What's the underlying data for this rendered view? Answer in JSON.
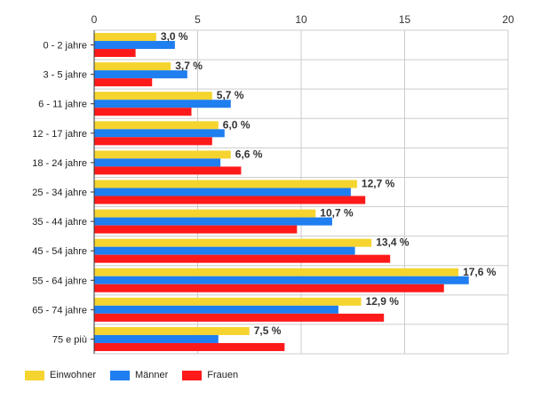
{
  "chart_data": {
    "type": "bar",
    "orientation": "horizontal",
    "categories": [
      "0 - 2 jahre",
      "3 - 5 jahre",
      "6 - 11 jahre",
      "12 - 17 jahre",
      "18 - 24 jahre",
      "25 - 34 jahre",
      "35 - 44 jahre",
      "45 - 54 jahre",
      "55 - 64 jahre",
      "65 - 74 jahre",
      "75 e più"
    ],
    "series": [
      {
        "name": "Einwohner",
        "color": "#f5d430",
        "values": [
          3.0,
          3.7,
          5.7,
          6.0,
          6.6,
          12.7,
          10.7,
          13.4,
          17.6,
          12.9,
          7.5
        ]
      },
      {
        "name": "Männer",
        "color": "#1f7ef0",
        "values": [
          3.9,
          4.5,
          6.6,
          6.3,
          6.1,
          12.4,
          11.5,
          12.6,
          18.1,
          11.8,
          6.0
        ]
      },
      {
        "name": "Frauen",
        "color": "#ff1a1a",
        "values": [
          2.0,
          2.8,
          4.7,
          5.7,
          7.1,
          13.1,
          9.8,
          14.3,
          16.9,
          14.0,
          9.2
        ]
      }
    ],
    "data_labels": [
      "3,0 %",
      "3,7 %",
      "5,7 %",
      "6,0 %",
      "6,6 %",
      "12,7 %",
      "10,7 %",
      "13,4 %",
      "17,6 %",
      "12,9 %",
      "7,5 %"
    ],
    "xlim": [
      0,
      20
    ],
    "xticks": [
      0,
      5,
      10,
      15,
      20
    ],
    "xtick_labels": [
      "0",
      "5",
      "10",
      "15",
      "20"
    ],
    "grid": true,
    "legend_position": "bottom-left"
  }
}
